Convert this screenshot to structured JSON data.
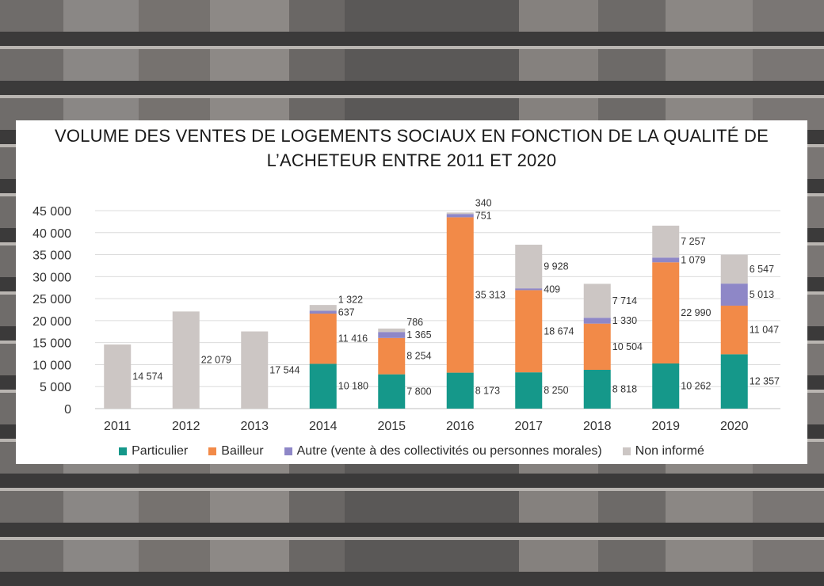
{
  "chart_data": {
    "type": "bar",
    "stacked": true,
    "title": "VOLUME DES VENTES DE LOGEMENTS SOCIAUX EN FONCTION DE LA QUALITÉ DE L’ACHETEUR ENTRE 2011 ET 2020",
    "title_lines": [
      "VOLUME DES VENTES DE LOGEMENTS SOCIAUX EN FONCTION DE LA QUALITÉ DE",
      "L’ACHETEUR ENTRE 2011 ET 2020"
    ],
    "xlabel": "",
    "ylabel": "",
    "ylim": [
      0,
      45000
    ],
    "grid": true,
    "legend_position": "bottom",
    "categories": [
      "2011",
      "2012",
      "2013",
      "2014",
      "2015",
      "2016",
      "2017",
      "2018",
      "2019",
      "2020"
    ],
    "y_ticks": [
      "0",
      "5 000",
      "10 000",
      "15 000",
      "20 000",
      "25 000",
      "30 000",
      "35 000",
      "40 000",
      "45 000"
    ],
    "series": [
      {
        "name": "Particulier",
        "color": "#15988a",
        "values": [
          0,
          0,
          0,
          10180,
          7800,
          8173,
          8250,
          8818,
          10262,
          12357
        ],
        "labels": [
          "",
          "",
          "",
          "10 180",
          "7 800",
          "8 173",
          "8 250",
          "8 818",
          "10 262",
          "12 357"
        ]
      },
      {
        "name": "Bailleur",
        "color": "#f28a48",
        "values": [
          0,
          0,
          0,
          11416,
          8254,
          35313,
          18674,
          10504,
          22990,
          11047
        ],
        "labels": [
          "",
          "",
          "",
          "11 416",
          "8 254",
          "35 313",
          "18 674",
          "10 504",
          "22 990",
          "11 047"
        ]
      },
      {
        "name": "Autre (vente à des collectivités ou personnes morales)",
        "color": "#8e87c7",
        "values": [
          0,
          0,
          0,
          637,
          1365,
          751,
          409,
          1330,
          1079,
          5013
        ],
        "labels": [
          "",
          "",
          "",
          "637",
          "1 365",
          "751",
          "409",
          "1 330",
          "1 079",
          "5 013"
        ]
      },
      {
        "name": "Non informé",
        "color": "#ccc6c4",
        "values": [
          14574,
          22079,
          17544,
          1322,
          786,
          340,
          9928,
          7714,
          7257,
          6547
        ],
        "labels": [
          "14 574",
          "22 079",
          "17 544",
          "1 322",
          "786",
          "340",
          "9 928",
          "7 714",
          "7 257",
          "6 547"
        ]
      }
    ]
  }
}
